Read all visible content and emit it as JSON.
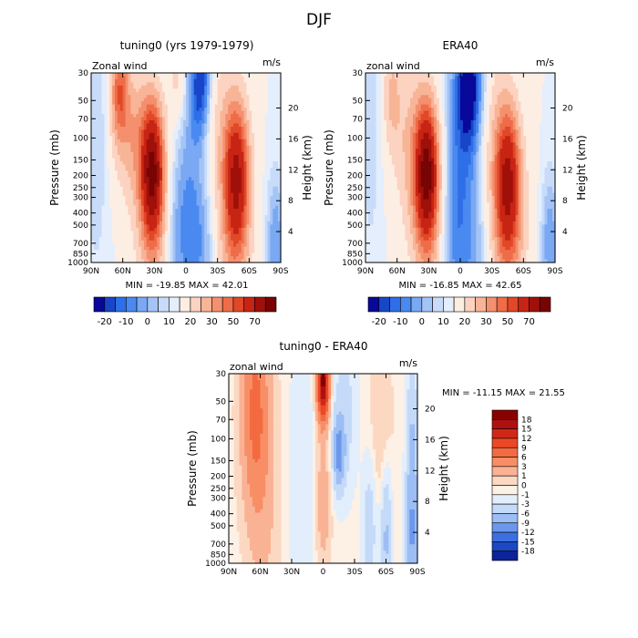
{
  "figure": {
    "title": "DJF"
  },
  "chart_data": [
    {
      "type": "heatmap",
      "title": "tuning0 (yrs 1979-1979)",
      "variable_label": "Zonal wind",
      "units": "m/s",
      "xlabel": "",
      "ylabel": "Pressure (mb)",
      "ylabel_right": "Height (km)",
      "x_ticks": [
        "90N",
        "60N",
        "30N",
        "0",
        "30S",
        "60S",
        "90S"
      ],
      "y_ticks": [
        "30",
        "50",
        "70",
        "100",
        "150",
        "200",
        "250",
        "300",
        "400",
        "500",
        "700",
        "850",
        "1000"
      ],
      "y_ticks_right": [
        "20",
        "16",
        "12",
        "8",
        "4"
      ],
      "ylim": [
        1000,
        30
      ],
      "y_scale": "log",
      "xlim": [
        90,
        -90
      ],
      "stats_text": "MIN = -19.85   MAX = 42.01",
      "min": -19.85,
      "max": 42.01,
      "colorbar": {
        "labels": [
          "-20",
          "-10",
          "0",
          "10",
          "20",
          "30",
          "50",
          "70"
        ],
        "colors": [
          "#08089a",
          "#1846c8",
          "#2e6ee6",
          "#4a8af0",
          "#7aa8f2",
          "#a4c4f6",
          "#c8dcfa",
          "#e4eefc",
          "#fdeee4",
          "#fcd2c0",
          "#f8b496",
          "#f4906e",
          "#ee6c48",
          "#e04828",
          "#c82414",
          "#a0100a",
          "#780404"
        ]
      },
      "fields": {
        "base": "#c8dcfa",
        "blobs": [
          {
            "lat": 63,
            "p": 42,
            "sx": 6,
            "sy": 0.28,
            "v": 22,
            "label": "NH jet upper"
          },
          {
            "lat": 50,
            "p": 95,
            "sx": 12,
            "sy": 0.38,
            "v": 12,
            "label": "NH jet mid"
          },
          {
            "lat": 32,
            "p": 185,
            "sx": 7,
            "sy": 0.35,
            "v": 42,
            "label": "NH subtropical jet"
          },
          {
            "lat": 30,
            "p": 400,
            "sx": 12,
            "sy": 0.55,
            "v": 15,
            "label": "NH jet lower"
          },
          {
            "lat": -48,
            "p": 200,
            "sx": 8,
            "sy": 0.4,
            "v": 36,
            "label": "SH jet"
          },
          {
            "lat": -45,
            "p": 600,
            "sx": 12,
            "sy": 0.55,
            "v": 12,
            "label": "SH jet lower"
          },
          {
            "lat": -22,
            "p": 60,
            "sx": 14,
            "sy": 0.45,
            "v": 10,
            "label": "SH upper westerly"
          },
          {
            "lat": 8,
            "p": 35,
            "sx": 6,
            "sy": 0.25,
            "v": 8,
            "label": "equatorial upper"
          },
          {
            "lat": -15,
            "p": 38,
            "sx": 8,
            "sy": 0.35,
            "v": -20,
            "label": "tropical easterly upper"
          },
          {
            "lat": -5,
            "p": 160,
            "sx": 12,
            "sy": 0.8,
            "v": -9,
            "label": "tropical easterly"
          },
          {
            "lat": 12,
            "p": 700,
            "sx": 10,
            "sy": 0.5,
            "v": -8,
            "label": "trade winds"
          },
          {
            "lat": -15,
            "p": 800,
            "sx": 10,
            "sy": 0.45,
            "v": -6,
            "label": "SH trades"
          },
          {
            "lat": 85,
            "p": 70,
            "sx": 8,
            "sy": 0.9,
            "v": -5,
            "label": "NH polar"
          },
          {
            "lat": -85,
            "p": 700,
            "sx": 6,
            "sy": 0.4,
            "v": -10,
            "label": "SH polar"
          }
        ]
      }
    },
    {
      "type": "heatmap",
      "title": "ERA40",
      "variable_label": "zonal wind",
      "units": "m/s",
      "xlabel": "",
      "ylabel": "Pressure (mb)",
      "ylabel_right": "Height (km)",
      "x_ticks": [
        "90N",
        "60N",
        "30N",
        "0",
        "30S",
        "60S",
        "90S"
      ],
      "y_ticks": [
        "30",
        "50",
        "70",
        "100",
        "150",
        "200",
        "250",
        "300",
        "400",
        "500",
        "700",
        "850",
        "1000"
      ],
      "y_ticks_right": [
        "20",
        "16",
        "12",
        "8",
        "4"
      ],
      "ylim": [
        1000,
        30
      ],
      "y_scale": "log",
      "xlim": [
        90,
        -90
      ],
      "stats_text": "MIN = -16.85   MAX = 42.65",
      "min": -16.85,
      "max": 42.65,
      "colorbar": {
        "labels": [
          "-20",
          "-10",
          "0",
          "10",
          "20",
          "30",
          "50",
          "70"
        ],
        "colors": [
          "#08089a",
          "#1846c8",
          "#2e6ee6",
          "#4a8af0",
          "#7aa8f2",
          "#a4c4f6",
          "#c8dcfa",
          "#e4eefc",
          "#fdeee4",
          "#fcd2c0",
          "#f8b496",
          "#f4906e",
          "#ee6c48",
          "#e04828",
          "#c82414",
          "#a0100a",
          "#780404"
        ]
      },
      "fields": {
        "base": "#c8dcfa",
        "blobs": [
          {
            "lat": 65,
            "p": 45,
            "sx": 6,
            "sy": 0.3,
            "v": 10,
            "label": "NH jet upper"
          },
          {
            "lat": 45,
            "p": 110,
            "sx": 13,
            "sy": 0.45,
            "v": 10,
            "label": "NH jet mid"
          },
          {
            "lat": 32,
            "p": 190,
            "sx": 7,
            "sy": 0.35,
            "v": 42,
            "label": "NH subtropical jet"
          },
          {
            "lat": 30,
            "p": 420,
            "sx": 12,
            "sy": 0.55,
            "v": 14,
            "label": "NH jet lower"
          },
          {
            "lat": -45,
            "p": 220,
            "sx": 8,
            "sy": 0.4,
            "v": 36,
            "label": "SH jet"
          },
          {
            "lat": -45,
            "p": 600,
            "sx": 13,
            "sy": 0.55,
            "v": 12,
            "label": "SH jet lower"
          },
          {
            "lat": -30,
            "p": 70,
            "sx": 10,
            "sy": 0.5,
            "v": 6,
            "label": "SH upper westerly"
          },
          {
            "lat": -10,
            "p": 38,
            "sx": 10,
            "sy": 0.38,
            "v": -17,
            "label": "tropical easterly upper"
          },
          {
            "lat": 0,
            "p": 150,
            "sx": 12,
            "sy": 0.8,
            "v": -9,
            "label": "tropical easterly"
          },
          {
            "lat": 10,
            "p": 700,
            "sx": 10,
            "sy": 0.5,
            "v": -7,
            "label": "trade winds"
          },
          {
            "lat": -15,
            "p": 800,
            "sx": 10,
            "sy": 0.45,
            "v": -6,
            "label": "SH trades"
          },
          {
            "lat": 85,
            "p": 70,
            "sx": 8,
            "sy": 0.9,
            "v": -4,
            "label": "NH polar"
          },
          {
            "lat": -85,
            "p": 700,
            "sx": 6,
            "sy": 0.4,
            "v": -10,
            "label": "SH polar"
          }
        ]
      }
    },
    {
      "type": "heatmap",
      "title": "tuning0 - ERA40",
      "variable_label": "zonal wind",
      "units": "m/s",
      "xlabel": "",
      "ylabel": "Pressure (mb)",
      "ylabel_right": "Height (km)",
      "x_ticks": [
        "90N",
        "60N",
        "30N",
        "0",
        "30S",
        "60S",
        "90S"
      ],
      "y_ticks": [
        "30",
        "50",
        "70",
        "100",
        "150",
        "200",
        "250",
        "300",
        "400",
        "500",
        "700",
        "850",
        "1000"
      ],
      "y_ticks_right": [
        "20",
        "16",
        "12",
        "8",
        "4"
      ],
      "ylim": [
        1000,
        30
      ],
      "y_scale": "log",
      "xlim": [
        90,
        -90
      ],
      "stats_text": "MIN = -11.15   MAX =  21.55",
      "min": -11.15,
      "max": 21.55,
      "colorbar": {
        "labels": [
          "18",
          "15",
          "12",
          "9",
          "6",
          "3",
          "1",
          "0",
          "-1",
          "-3",
          "-6",
          "-9",
          "-12",
          "-15",
          "-18"
        ],
        "colors": [
          "#880000",
          "#b01010",
          "#d02818",
          "#ea4826",
          "#f46a40",
          "#f88e66",
          "#fab294",
          "#fcd8c2",
          "#fdf0e4",
          "#e2eefc",
          "#c4daf8",
          "#9cbef4",
          "#6c98ec",
          "#3c70e0",
          "#1c48c4",
          "#0c2496"
        ]
      },
      "fields": {
        "base": "#fdf0e4",
        "blobs": [
          {
            "lat": 65,
            "p": 60,
            "sx": 9,
            "sy": 0.6,
            "v": 8,
            "label": "NH high-lat positive"
          },
          {
            "lat": 55,
            "p": 300,
            "sx": 10,
            "sy": 0.8,
            "v": 2,
            "label": "NH mid positive"
          },
          {
            "lat": 0,
            "p": 35,
            "sx": 4,
            "sy": 0.22,
            "v": 21,
            "label": "equatorial upper max"
          },
          {
            "lat": -20,
            "p": 60,
            "sx": 8,
            "sy": 0.45,
            "v": -3,
            "label": "tropical upper negative"
          },
          {
            "lat": -15,
            "p": 130,
            "sx": 4,
            "sy": 0.2,
            "v": -8,
            "label": "tropical min"
          },
          {
            "lat": 0,
            "p": 320,
            "sx": 5,
            "sy": 0.35,
            "v": 4,
            "label": "equatorial mid positive"
          },
          {
            "lat": 20,
            "p": 200,
            "sx": 10,
            "sy": 0.9,
            "v": -1.5,
            "label": "NH subtropics negative"
          },
          {
            "lat": -45,
            "p": 500,
            "sx": 5,
            "sy": 0.4,
            "v": -4,
            "label": "SH jet negative"
          },
          {
            "lat": -55,
            "p": 150,
            "sx": 8,
            "sy": 0.7,
            "v": 2,
            "label": "SH upper positive"
          },
          {
            "lat": -60,
            "p": 600,
            "sx": 4,
            "sy": 0.4,
            "v": -6,
            "label": "SH lower negative"
          },
          {
            "lat": -85,
            "p": 500,
            "sx": 4,
            "sy": 0.8,
            "v": -8,
            "label": "SH polar negative"
          }
        ]
      }
    }
  ]
}
